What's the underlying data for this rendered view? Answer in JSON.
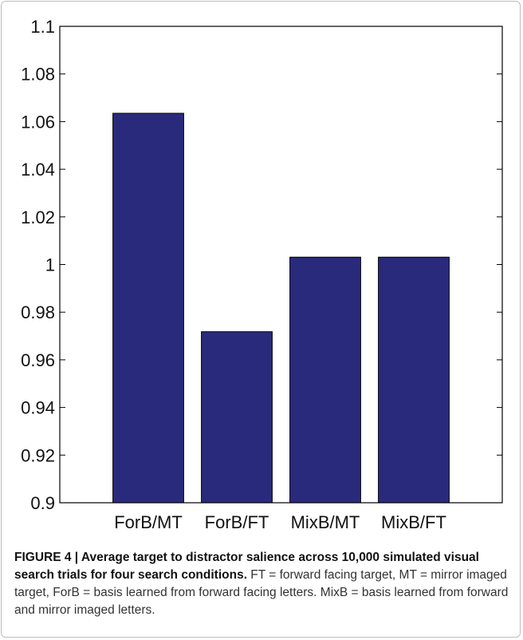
{
  "chart_data": {
    "type": "bar",
    "categories": [
      "ForB/MT",
      "ForB/FT",
      "MixB/MT",
      "MixB/FT"
    ],
    "values": [
      1.0635,
      0.9718,
      1.0031,
      1.0031
    ],
    "ylim": [
      0.9,
      1.1
    ],
    "yticks": [
      0.9,
      0.92,
      0.94,
      0.96,
      0.98,
      1,
      1.02,
      1.04,
      1.06,
      1.08,
      1.1
    ],
    "ytick_labels": [
      "0.9",
      "0.92",
      "0.94",
      "0.96",
      "0.98",
      "1",
      "1.02",
      "1.04",
      "1.06",
      "1.08",
      "1.1"
    ],
    "grid": false,
    "bar_color": "#2a2a7c",
    "title": "",
    "xlabel": "",
    "ylabel": ""
  },
  "caption": {
    "label": "FIGURE 4 | Average target to distractor salience across 10,000 simulated visual search trials for four search conditions.",
    "text": " FT = forward facing target, MT = mirror imaged target, ForB = basis learned from forward facing letters. MixB = basis learned from forward and mirror imaged letters."
  }
}
